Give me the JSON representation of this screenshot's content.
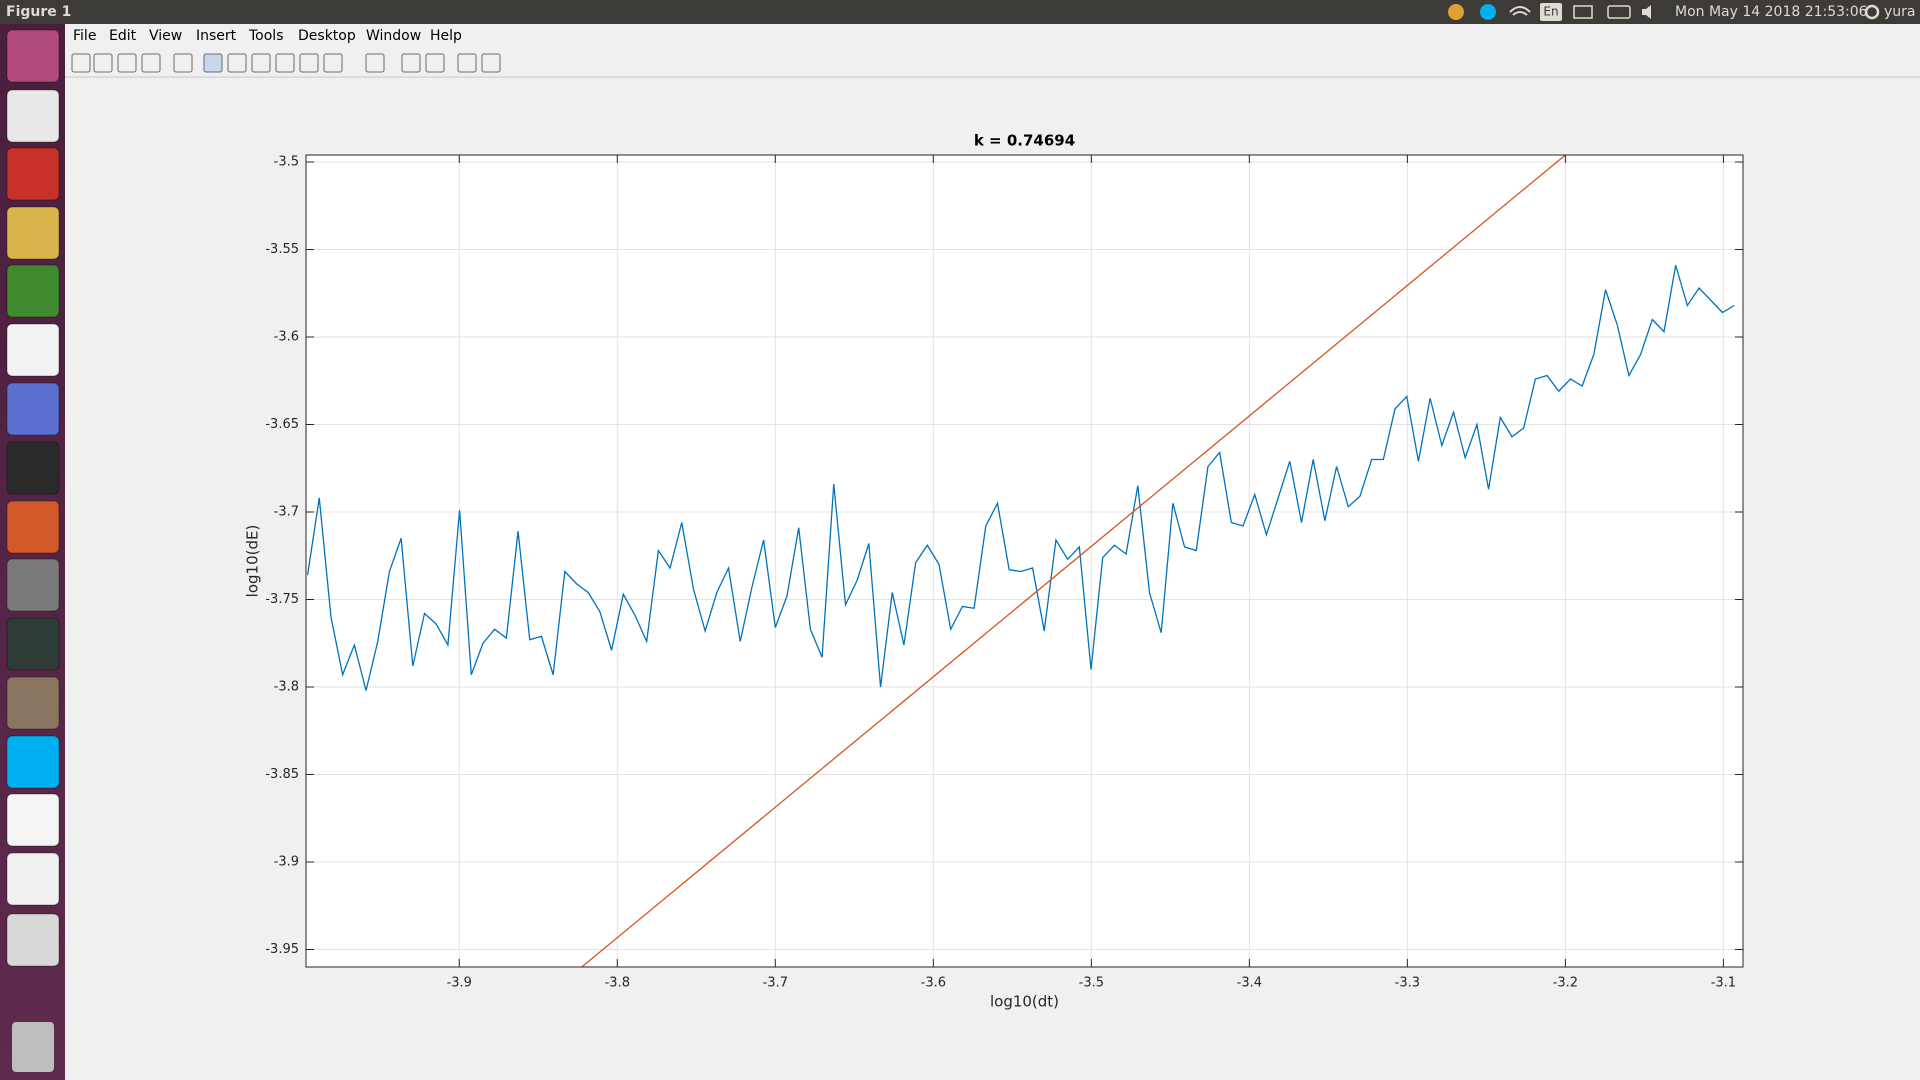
{
  "top_bar": {
    "title": "Figure 1",
    "keyboard": "En",
    "clock": "Mon May 14 2018 21:53:06",
    "user": "yura"
  },
  "menu": [
    "File",
    "Edit",
    "View",
    "Insert",
    "Tools",
    "Desktop",
    "Window",
    "Help"
  ],
  "chart_data": {
    "type": "line",
    "title": "k = 0.74694",
    "xlabel": "log10(dt)",
    "ylabel": "log10(dE)",
    "xlim": [
      -3.997,
      -3.0876
    ],
    "ylim": [
      -3.96,
      -3.496
    ],
    "xticks": [
      -3.9,
      -3.8,
      -3.7,
      -3.6,
      -3.5,
      -3.4,
      -3.3,
      -3.2,
      -3.1
    ],
    "yticks": [
      -3.5,
      -3.55,
      -3.6,
      -3.65,
      -3.7,
      -3.75,
      -3.8,
      -3.85,
      -3.9,
      -3.95
    ],
    "grid": true,
    "series": [
      {
        "color": "#0072bd",
        "x": [
          -3.996,
          -3.9886,
          -3.9812,
          -3.9738,
          -3.9664,
          -3.959,
          -3.9516,
          -3.9442,
          -3.9368,
          -3.9294,
          -3.922,
          -3.9146,
          -3.9072,
          -3.8998,
          -3.8924,
          -3.885,
          -3.8776,
          -3.8702,
          -3.8628,
          -3.8554,
          -3.848,
          -3.8406,
          -3.8332,
          -3.8258,
          -3.8184,
          -3.811,
          -3.8036,
          -3.7962,
          -3.7888,
          -3.7814,
          -3.774,
          -3.7666,
          -3.7592,
          -3.7518,
          -3.7444,
          -3.737,
          -3.7296,
          -3.7222,
          -3.7148,
          -3.7074,
          -3.7,
          -3.6926,
          -3.6852,
          -3.6778,
          -3.6704,
          -3.663,
          -3.6556,
          -3.6482,
          -3.6408,
          -3.6334,
          -3.626,
          -3.6186,
          -3.6112,
          -3.6038,
          -3.5964,
          -3.589,
          -3.5816,
          -3.5742,
          -3.5668,
          -3.5594,
          -3.552,
          -3.5446,
          -3.5372,
          -3.5298,
          -3.5224,
          -3.515,
          -3.5076,
          -3.5002,
          -3.4928,
          -3.4854,
          -3.478,
          -3.4706,
          -3.4632,
          -3.4558,
          -3.4484,
          -3.441,
          -3.4336,
          -3.4262,
          -3.4188,
          -3.4114,
          -3.404,
          -3.3966,
          -3.3892,
          -3.3818,
          -3.3744,
          -3.367,
          -3.3596,
          -3.3522,
          -3.3448,
          -3.3374,
          -3.33,
          -3.3226,
          -3.3152,
          -3.3078,
          -3.3004,
          -3.293,
          -3.2856,
          -3.2782,
          -3.2708,
          -3.2634,
          -3.256,
          -3.2486,
          -3.2412,
          -3.2338,
          -3.2264,
          -3.219,
          -3.2116,
          -3.2042,
          -3.1968,
          -3.1894,
          -3.182,
          -3.1746,
          -3.1672,
          -3.1598,
          -3.1524,
          -3.145,
          -3.1376,
          -3.1302,
          -3.1228,
          -3.1154,
          -3.108,
          -3.1006,
          -3.0932
        ],
        "values": [
          -3.736,
          -3.692,
          -3.76,
          -3.793,
          -3.776,
          -3.802,
          -3.774,
          -3.734,
          -3.715,
          -3.788,
          -3.758,
          -3.764,
          -3.776,
          -3.699,
          -3.793,
          -3.775,
          -3.767,
          -3.772,
          -3.711,
          -3.773,
          -3.771,
          -3.793,
          -3.734,
          -3.741,
          -3.746,
          -3.757,
          -3.779,
          -3.747,
          -3.759,
          -3.774,
          -3.722,
          -3.732,
          -3.706,
          -3.744,
          -3.768,
          -3.746,
          -3.732,
          -3.774,
          -3.743,
          -3.716,
          -3.766,
          -3.748,
          -3.709,
          -3.767,
          -3.783,
          -3.684,
          -3.753,
          -3.739,
          -3.718,
          -3.8,
          -3.746,
          -3.776,
          -3.729,
          -3.719,
          -3.73,
          -3.767,
          -3.754,
          -3.755,
          -3.708,
          -3.695,
          -3.733,
          -3.734,
          -3.732,
          -3.768,
          -3.716,
          -3.727,
          -3.72,
          -3.79,
          -3.726,
          -3.719,
          -3.724,
          -3.685,
          -3.746,
          -3.769,
          -3.695,
          -3.72,
          -3.722,
          -3.674,
          -3.666,
          -3.706,
          -3.708,
          -3.69,
          -3.713,
          -3.692,
          -3.671,
          -3.706,
          -3.67,
          -3.705,
          -3.674,
          -3.697,
          -3.691,
          -3.67,
          -3.67,
          -3.641,
          -3.634,
          -3.671,
          -3.635,
          -3.662,
          -3.643,
          -3.669,
          -3.65,
          -3.687,
          -3.646,
          -3.657,
          -3.652,
          -3.624,
          -3.622,
          -3.631,
          -3.624,
          -3.628,
          -3.61,
          -3.573,
          -3.593,
          -3.622,
          -3.61,
          -3.59,
          -3.597,
          -3.559,
          -3.582,
          -3.572,
          -3.579,
          -3.586,
          -3.582
        ]
      },
      {
        "color": "#d95319",
        "x": [
          -3.8225,
          -3.2
        ],
        "values": [
          -3.96,
          -3.496
        ]
      }
    ]
  }
}
